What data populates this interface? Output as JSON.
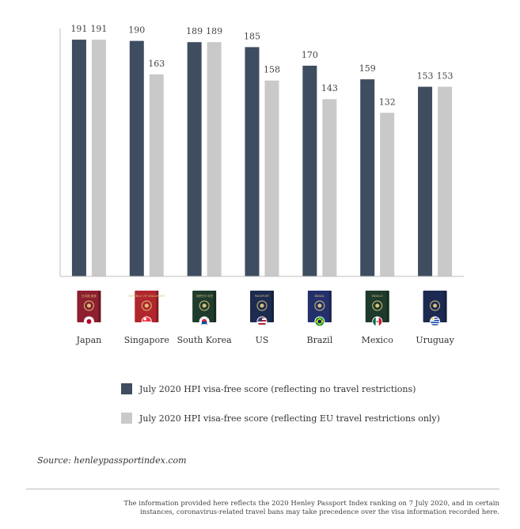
{
  "chart_data": {
    "type": "bar",
    "categories": [
      "Japan",
      "Singapore",
      "South Korea",
      "US",
      "Brazil",
      "Mexico",
      "Uruguay"
    ],
    "series": [
      {
        "name": "July 2020 HPI visa-free score (reflecting no travel restrictions)",
        "values": [
          191,
          190,
          189,
          185,
          170,
          159,
          153
        ]
      },
      {
        "name": "July 2020 HPI visa-free score (reflecting EU travel restrictions only)",
        "values": [
          191,
          163,
          189,
          158,
          143,
          132,
          153
        ]
      }
    ],
    "ylim": [
      0,
      200
    ],
    "colors": [
      "#3e4d5f",
      "#c9c9c9"
    ],
    "grid": false,
    "legend_position": "bottom"
  },
  "passports": [
    {
      "country": "Japan",
      "cover_color": "#8d1f2e",
      "cover_text": "日本国 旅券",
      "cover_text_bottom": "JAPAN",
      "flag": "japan"
    },
    {
      "country": "Singapore",
      "cover_color": "#b0262c",
      "cover_text": "REPUBLIC OF SINGAPORE",
      "cover_text_bottom": "",
      "flag": "singapore"
    },
    {
      "country": "South Korea",
      "cover_color": "#1f3b2c",
      "cover_text": "대한민국 여권",
      "cover_text_bottom": "",
      "flag": "south-korea"
    },
    {
      "country": "US",
      "cover_color": "#1c2b4f",
      "cover_text": "PASSPORT",
      "cover_text_bottom": "",
      "flag": "us"
    },
    {
      "country": "Brazil",
      "cover_color": "#23306b",
      "cover_text": "BRASIL",
      "cover_text_bottom": "",
      "flag": "brazil"
    },
    {
      "country": "Mexico",
      "cover_color": "#1d3a2a",
      "cover_text": "MEXICO",
      "cover_text_bottom": "",
      "flag": "mexico"
    },
    {
      "country": "Uruguay",
      "cover_color": "#1c2a52",
      "cover_text": "",
      "cover_text_bottom": "",
      "flag": "uruguay"
    }
  ],
  "source": "Source: henleypassportindex.com",
  "footnote": "The information provided here reflects the 2020 Henley Passport Index ranking on 7 July 2020, and in certain instances, coronavirus-related travel bans may take precedence over the visa information recorded here."
}
